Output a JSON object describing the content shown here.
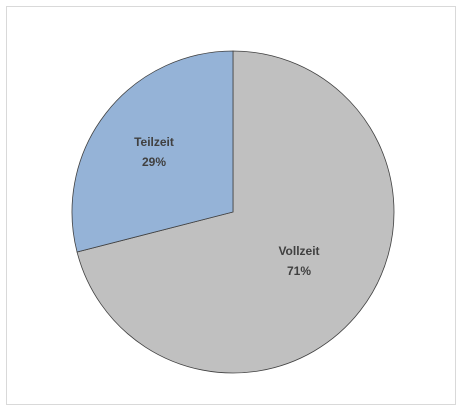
{
  "chart_data": {
    "type": "pie",
    "title": "",
    "slices": [
      {
        "label": "Vollzeit",
        "value": 71,
        "pct_label": "71%",
        "color": "#c0c0c0"
      },
      {
        "label": "Teilzeit",
        "value": 29,
        "pct_label": "29%",
        "color": "#95b3d7"
      }
    ],
    "start_angle_deg": 0,
    "direction": "clockwise",
    "stroke_color": "#404040",
    "legend": "none"
  }
}
